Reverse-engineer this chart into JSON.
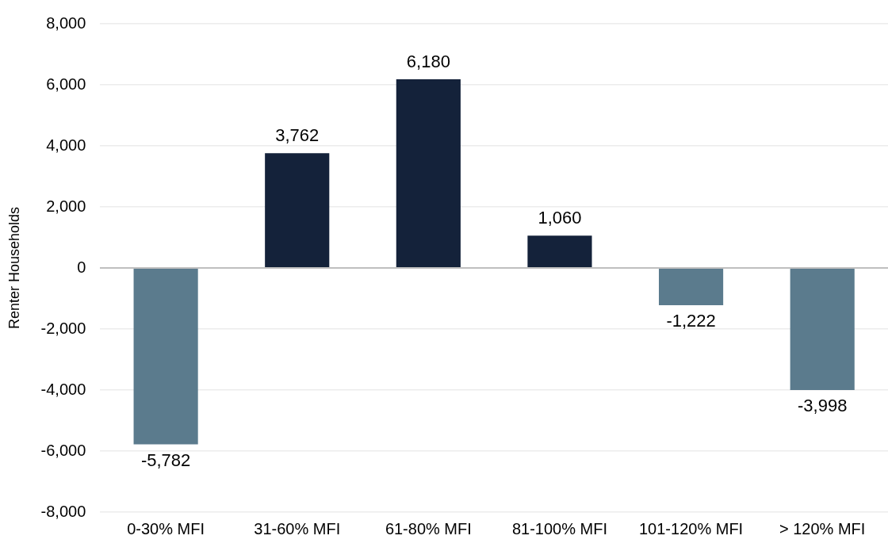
{
  "chart_data": {
    "type": "bar",
    "ylabel": "Renter Households",
    "categories": [
      "0-30% MFI",
      "31-60% MFI",
      "61-80% MFI",
      "81-100% MFI",
      "101-120% MFI",
      "> 120% MFI"
    ],
    "values": [
      -5782,
      3762,
      6180,
      1060,
      -1222,
      -3998
    ],
    "colors": [
      "#5b7b8d",
      "#14223a",
      "#14223a",
      "#14223a",
      "#5b7b8d",
      "#5b7b8d"
    ],
    "value_labels": [
      "-5,782",
      "3,762",
      "6,180",
      "1,060",
      "-1,222",
      "-3,998"
    ],
    "ylim": [
      -8000,
      8000
    ],
    "yticks": [
      {
        "value": -8000,
        "label": "-8,000"
      },
      {
        "value": -6000,
        "label": "-6,000"
      },
      {
        "value": -4000,
        "label": "-4,000"
      },
      {
        "value": -2000,
        "label": "-2,000"
      },
      0,
      {
        "value": 2000,
        "label": "2,000"
      },
      {
        "value": 4000,
        "label": "4,000"
      },
      {
        "value": 6000,
        "label": "6,000"
      },
      {
        "value": 8000,
        "label": "8,000"
      }
    ],
    "grid": "y",
    "legend": false
  }
}
